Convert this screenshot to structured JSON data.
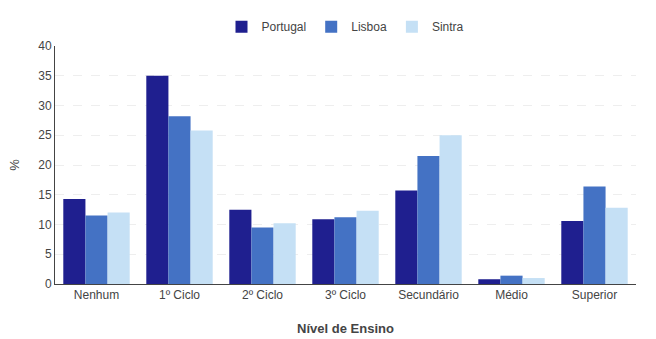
{
  "chart_data": {
    "type": "bar",
    "xlabel": "Nível de Ensino",
    "ylabel": "%",
    "categories": [
      "Nenhum",
      "1º Ciclo",
      "2º Ciclo",
      "3º Ciclo",
      "Secundário",
      "Médio",
      "Superior"
    ],
    "series": [
      {
        "name": "Portugal",
        "color": "#1f1f8f",
        "values": [
          14.3,
          35.0,
          12.5,
          10.9,
          15.7,
          0.8,
          10.6
        ]
      },
      {
        "name": "Lisboa",
        "color": "#4472c4",
        "values": [
          11.5,
          28.2,
          9.5,
          11.2,
          21.5,
          1.4,
          16.4
        ]
      },
      {
        "name": "Sintra",
        "color": "#c5e0f5",
        "values": [
          12.0,
          25.8,
          10.2,
          12.3,
          25.0,
          1.0,
          12.8
        ]
      }
    ],
    "ylim": [
      0,
      40
    ],
    "yticks": [
      0,
      5,
      10,
      15,
      20,
      25,
      30,
      35,
      40
    ],
    "grid": true,
    "legend": "top"
  }
}
